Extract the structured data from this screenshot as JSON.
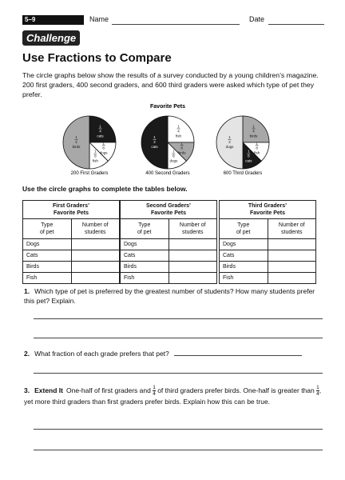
{
  "header": {
    "lesson": "5–9",
    "name_label": "Name",
    "date_label": "Date",
    "banner": "Challenge"
  },
  "title": "Use Fractions to Compare",
  "intro": "The circle graphs below show the results of a survey conducted by a young children’s magazine. 200 first graders, 400 second graders, and 600 third graders were asked which type of pet they prefer.",
  "figure": {
    "title": "Favorite Pets",
    "pies": [
      {
        "caption": "200 First Graders",
        "slices": [
          {
            "name": "cats",
            "num": 1,
            "den": 4,
            "color": "#1a1a1a"
          },
          {
            "name": "dogs",
            "num": 1,
            "den": 8,
            "color": "#ffffff"
          },
          {
            "name": "fish",
            "num": 1,
            "den": 8,
            "color": "#ffffff"
          },
          {
            "name": "birds",
            "num": 1,
            "den": 2,
            "color": "#a8a8a8"
          }
        ]
      },
      {
        "caption": "400 Second Graders",
        "slices": [
          {
            "name": "fish",
            "num": 1,
            "den": 4,
            "color": "#ffffff"
          },
          {
            "name": "birds",
            "num": 1,
            "den": 8,
            "color": "#a8a8a8"
          },
          {
            "name": "dogs",
            "num": 1,
            "den": 8,
            "color": "#ffffff"
          },
          {
            "name": "cats",
            "num": 1,
            "den": 2,
            "color": "#1a1a1a"
          }
        ]
      },
      {
        "caption": "600 Third Graders",
        "slices": [
          {
            "name": "birds",
            "num": 1,
            "den": 4,
            "color": "#a8a8a8"
          },
          {
            "name": "fish",
            "num": 1,
            "den": 8,
            "color": "#ffffff"
          },
          {
            "name": "cats",
            "num": 1,
            "den": 8,
            "color": "#1a1a1a"
          },
          {
            "name": "dogs",
            "num": 1,
            "den": 2,
            "color": "#e4e4e4"
          }
        ]
      }
    ]
  },
  "instruction": "Use the circle graphs to complete the tables below.",
  "tables": [
    {
      "title": [
        "First Graders’",
        "Favorite Pets"
      ],
      "headers": [
        [
          "Type",
          "of pet"
        ],
        [
          "Number of",
          "students"
        ]
      ],
      "rows": [
        "Dogs",
        "Cats",
        "Birds",
        "Fish"
      ]
    },
    {
      "title": [
        "Second Graders’",
        "Favorite Pets"
      ],
      "headers": [
        [
          "Type",
          "of pet"
        ],
        [
          "Number of",
          "students"
        ]
      ],
      "rows": [
        "Dogs",
        "Cats",
        "Birds",
        "Fish"
      ]
    },
    {
      "title": [
        "Third Graders’",
        "Favorite Pets"
      ],
      "headers": [
        [
          "Type",
          "of pet"
        ],
        [
          "Number of",
          "students"
        ]
      ],
      "rows": [
        "Dogs",
        "Cats",
        "Birds",
        "Fish"
      ]
    }
  ],
  "questions": [
    {
      "number": "1.",
      "parts": [
        "Which type of pet is preferred by the greatest number of students? How many students prefer this pet? Explain."
      ]
    },
    {
      "number": "2.",
      "parts": [
        "What fraction of each grade prefers that pet?"
      ]
    },
    {
      "number": "3.",
      "lead": "Extend It",
      "parts": [
        "One-half of first graders and ",
        {
          "num": 1,
          "den": 4
        },
        " of third graders prefer birds. One-half is greater than ",
        {
          "num": 1,
          "den": 4
        },
        ", yet more third graders than first graders prefer birds. Explain how this can be true."
      ]
    }
  ]
}
